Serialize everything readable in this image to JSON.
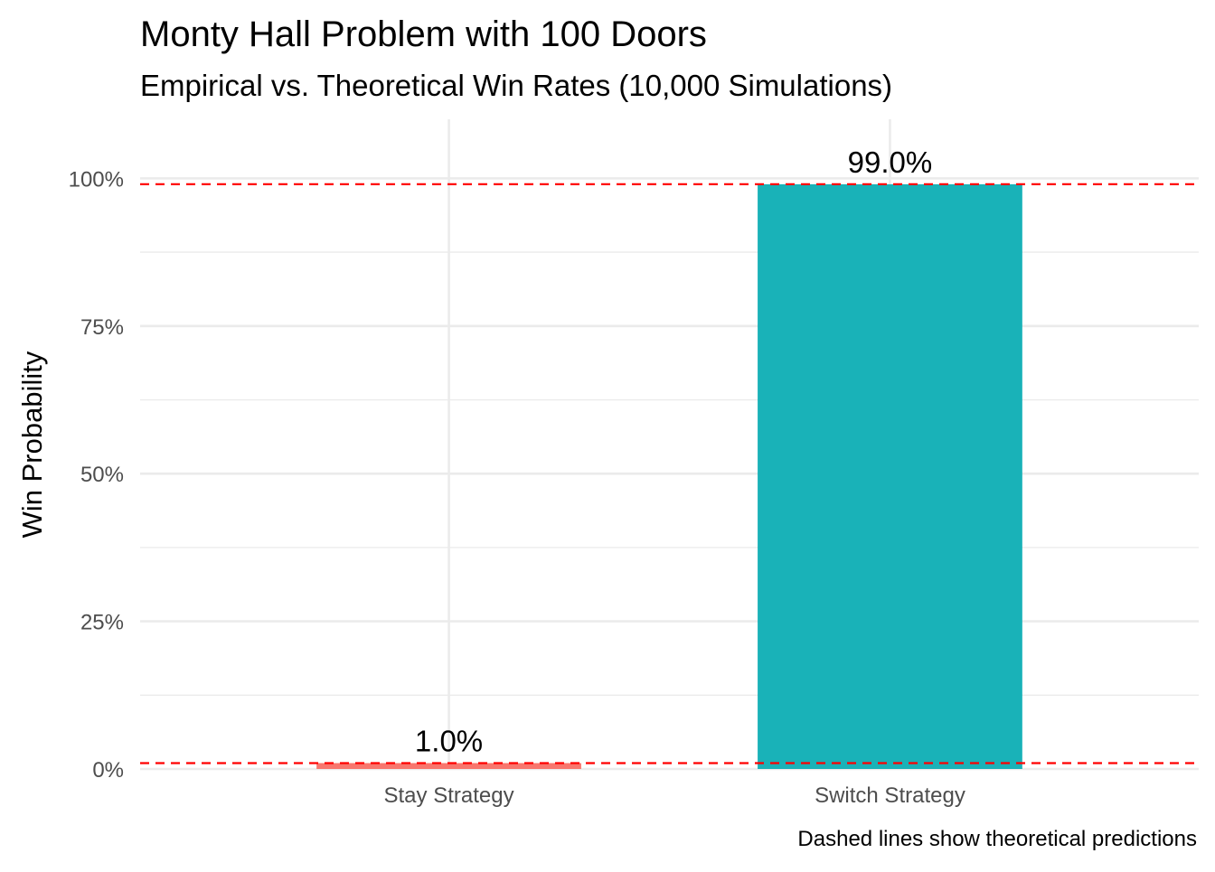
{
  "chart_data": {
    "type": "bar",
    "title": "Monty Hall Problem with 100 Doors",
    "subtitle": "Empirical vs. Theoretical Win Rates (10,000 Simulations)",
    "xlabel": "",
    "ylabel": "Win Probability",
    "caption": "Dashed lines show theoretical predictions",
    "categories": [
      "Stay Strategy",
      "Switch Strategy"
    ],
    "values": [
      0.01,
      0.99
    ],
    "data_labels": [
      "1.0%",
      "99.0%"
    ],
    "bar_colors": [
      "#F8766D",
      "#19B2B8"
    ],
    "ylim": [
      0,
      1.1
    ],
    "y_ticks": [
      0,
      0.25,
      0.5,
      0.75,
      1.0
    ],
    "y_tick_labels": [
      "0%",
      "25%",
      "50%",
      "75%",
      "100%"
    ],
    "reference_lines": [
      {
        "y": 0.01,
        "style": "dashed",
        "color": "#FF0000"
      },
      {
        "y": 0.99,
        "style": "dashed",
        "color": "#FF0000"
      }
    ],
    "grid": true,
    "legend": "none"
  }
}
